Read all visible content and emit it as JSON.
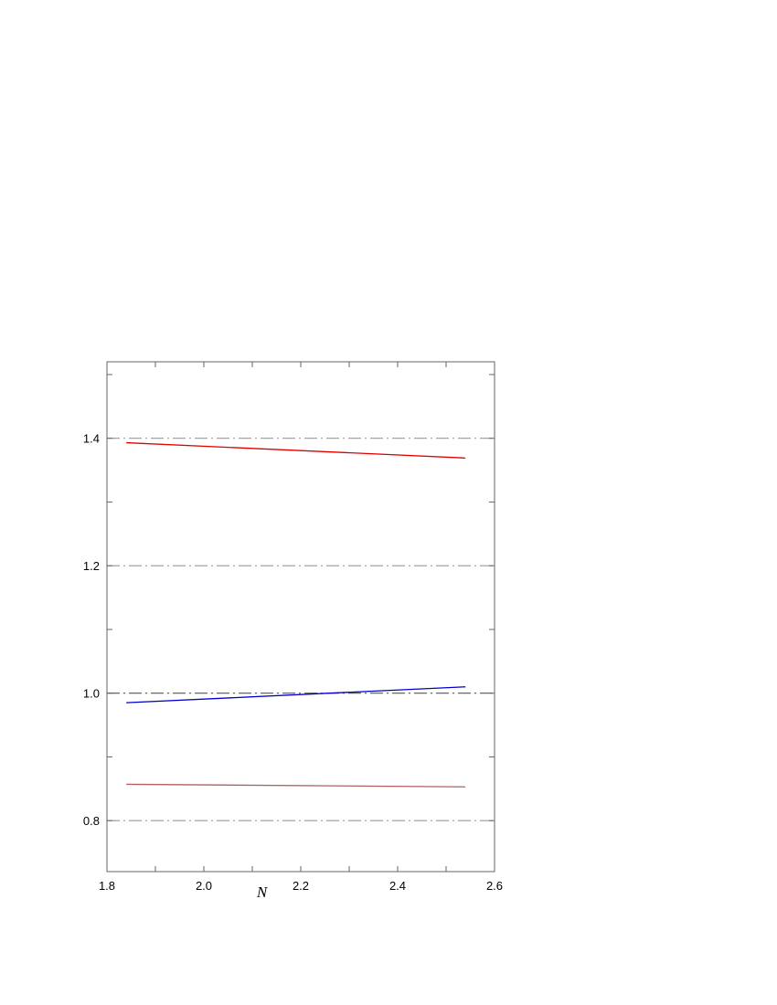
{
  "chart_data": {
    "type": "line",
    "title": "",
    "xlabel": "N",
    "ylabel": "",
    "xlim": [
      1.8,
      2.6
    ],
    "ylim": [
      0.72,
      1.52
    ],
    "x_ticks": [
      1.8,
      2.0,
      2.2,
      2.4,
      2.6
    ],
    "x_tick_labels": [
      "1.8",
      "2.0",
      "2.2",
      "2.4",
      "2.6"
    ],
    "y_ticks": [
      0.8,
      1.0,
      1.2,
      1.4
    ],
    "y_tick_labels": [
      "0.8",
      "1.0",
      "1.2",
      "1.4"
    ],
    "reference_lines": [
      {
        "y": 0.8,
        "style": "dash-dot",
        "color": "#999999"
      },
      {
        "y": 1.0,
        "style": "dash-dot",
        "color": "#555555"
      },
      {
        "y": 1.2,
        "style": "dash-dot",
        "color": "#999999"
      },
      {
        "y": 1.4,
        "style": "dash-dot",
        "color": "#999999"
      }
    ],
    "series": [
      {
        "color": "#e00000",
        "x": [
          1.84,
          2.54
        ],
        "y": [
          1.393,
          1.369
        ]
      },
      {
        "color": "#0000cc",
        "x": [
          1.84,
          2.54
        ],
        "y": [
          0.985,
          1.01
        ]
      },
      {
        "color": "#b06060",
        "x": [
          1.84,
          2.54
        ],
        "y": [
          0.857,
          0.853
        ]
      }
    ],
    "grid": false,
    "legend": "none"
  }
}
